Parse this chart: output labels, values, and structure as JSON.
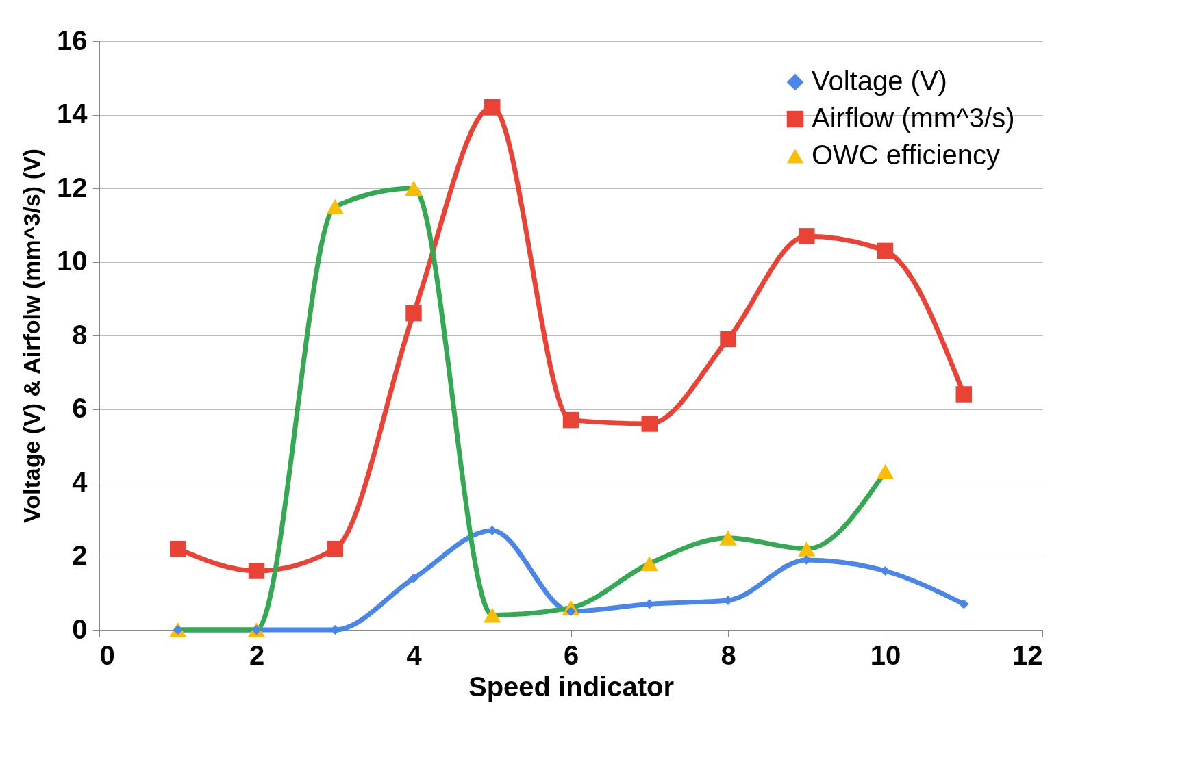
{
  "chart_data": {
    "type": "line",
    "xlabel": "Speed indicator",
    "ylabel": "Voltage (V)  & Airfolw (mm^3/s) (V)",
    "xlim": [
      0,
      12
    ],
    "xticks": [
      0,
      2,
      4,
      6,
      8,
      10,
      12
    ],
    "ylim": [
      0,
      16
    ],
    "yticks": [
      0,
      2,
      4,
      6,
      8,
      10,
      12,
      14,
      16
    ],
    "grid": "y",
    "legend": "top right",
    "line_style": "solid",
    "series": [
      {
        "name": "Voltage (V)",
        "color": "#4a86e8",
        "marker": "diamond",
        "x": [
          1,
          2,
          3,
          4,
          5,
          6,
          7,
          8,
          9,
          10,
          11
        ],
        "values": [
          0,
          0,
          0,
          1.4,
          2.7,
          0.5,
          0.7,
          0.8,
          1.9,
          1.6,
          0.7
        ]
      },
      {
        "name": "Airflow (mm^3/s)",
        "color": "#ea4335",
        "marker": "square",
        "x": [
          1,
          2,
          3,
          4,
          5,
          6,
          7,
          8,
          9,
          10,
          11
        ],
        "values": [
          2.2,
          1.6,
          2.2,
          8.6,
          14.2,
          5.7,
          5.6,
          7.9,
          10.7,
          10.3,
          6.4
        ]
      },
      {
        "name": "OWC efficiency",
        "color": "#34a853",
        "marker": "triangle",
        "colors": [
          "#fbbc04",
          "#fbbc04",
          "#fbbc04",
          "#fbbc04",
          "#fbbc04",
          "#fbbc04",
          "#fbbc04",
          "#fbbc04",
          "#fbbc04",
          "#fbbc04"
        ],
        "x": [
          1,
          2,
          3,
          4,
          5,
          6,
          7,
          8,
          9,
          10
        ],
        "values": [
          0,
          0,
          11.5,
          12,
          0.4,
          0.6,
          1.8,
          2.5,
          2.2,
          4.3
        ]
      }
    ]
  }
}
